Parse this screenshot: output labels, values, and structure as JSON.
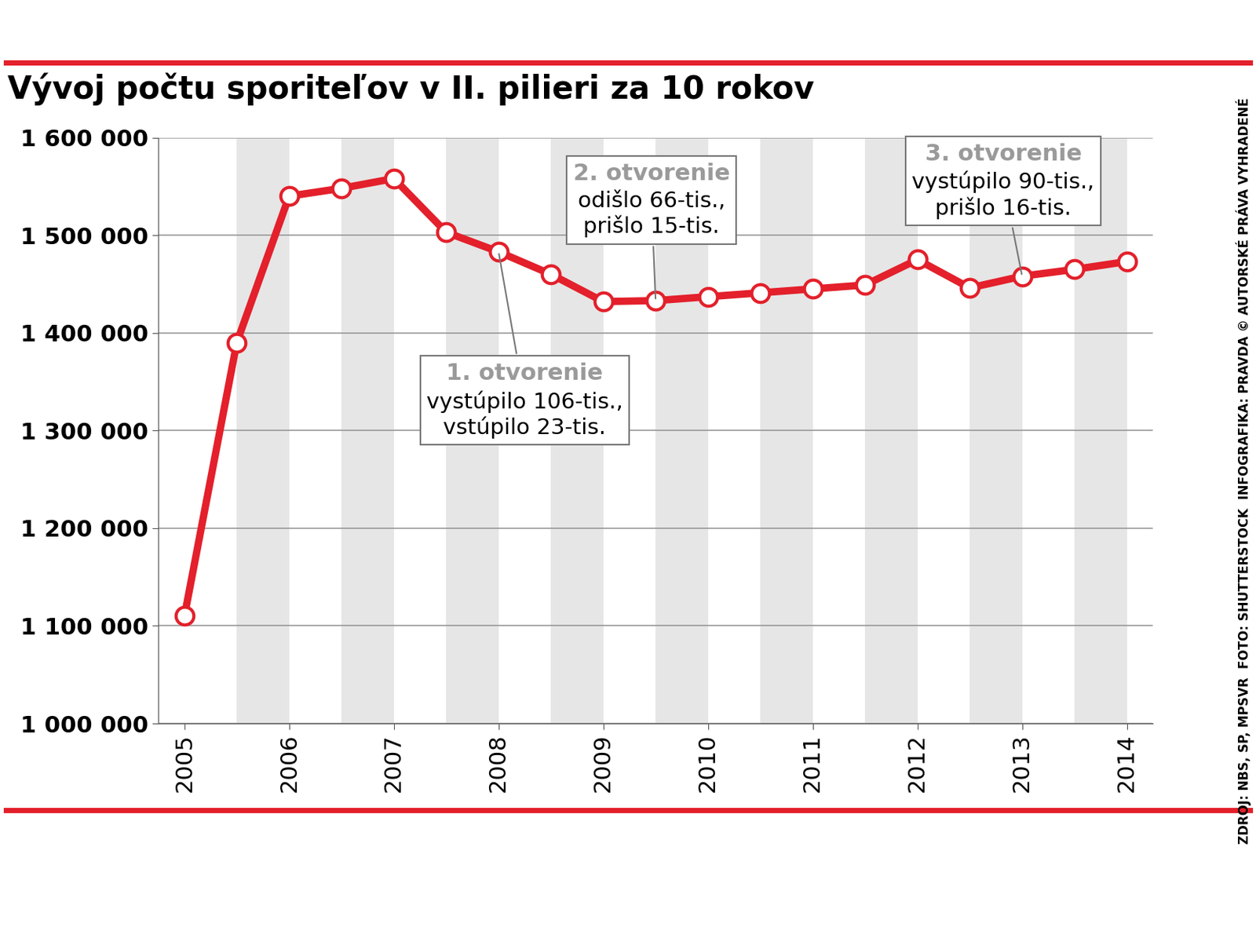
{
  "chart_data": {
    "type": "line",
    "title": "Vývoj počtu sporiteľov v II. pilieri za 10 rokov",
    "x": [
      2005,
      2005.5,
      2006,
      2006.5,
      2007,
      2007.5,
      2008,
      2008.5,
      2009,
      2009.5,
      2010,
      2010.5,
      2011,
      2011.5,
      2012,
      2012.5,
      2013,
      2013.5,
      2014
    ],
    "values": [
      1110000,
      1390000,
      1540000,
      1548000,
      1558000,
      1503000,
      1483000,
      1460000,
      1432000,
      1433000,
      1437000,
      1441000,
      1445000,
      1449000,
      1475000,
      1446000,
      1458000,
      1465000,
      1473000
    ],
    "color": "#e3202b",
    "marker": "o",
    "line_style": "solid",
    "xlim": [
      2004.75,
      2014.25
    ],
    "xticks": [
      2005,
      2006,
      2007,
      2008,
      2009,
      2010,
      2011,
      2012,
      2013,
      2014
    ],
    "ylim": [
      1000000,
      1600000
    ],
    "yticks": [
      {
        "value": 1000000,
        "label": "1 000 000"
      },
      {
        "value": 1100000,
        "label": "1 100 000"
      },
      {
        "value": 1200000,
        "label": "1 200 000"
      },
      {
        "value": 1300000,
        "label": "1 300 000"
      },
      {
        "value": 1400000,
        "label": "1 400 000"
      },
      {
        "value": 1500000,
        "label": "1 500 000"
      },
      {
        "value": 1600000,
        "label": "1 600 000"
      }
    ],
    "grid": true,
    "annotations": [
      {
        "x": 2008,
        "title": "1. otvorenie",
        "text": "vystúpilo 106-tis.,\nvstúpilo 23-tis."
      },
      {
        "x": 2009.5,
        "title": "2. otvorenie",
        "text": "odišlo 66-tis.,\nprišlo 15-tis."
      },
      {
        "x": 2013,
        "title": "3. otvorenie",
        "text": "vystúpilo 90-tis.,\nprišlo 16-tis."
      }
    ],
    "source": "ZDROJ: NBS, SP, MPSVR  FOTO: SHUTTERSTOCK  INFOGRAFIKA: PRAVDA © AUTORSKÉ PRÁVA VYHRADENÉ"
  }
}
